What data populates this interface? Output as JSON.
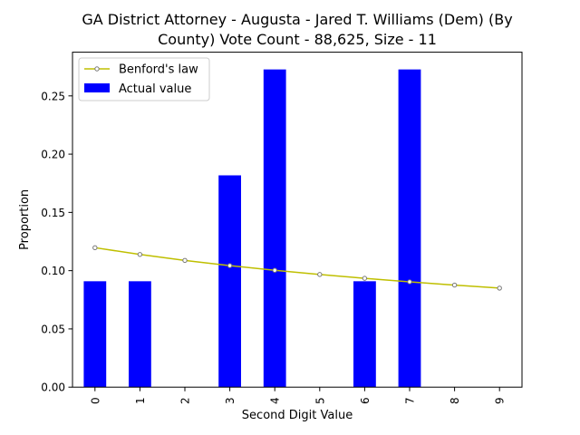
{
  "chart_data": {
    "type": "bar",
    "title_line1": "GA District Attorney - Augusta - Jared T. Williams (Dem) (By",
    "title_line2": "County) Vote Count - 88,625, Size - 11",
    "xlabel": "Second Digit Value",
    "ylabel": "Proportion",
    "categories": [
      "0",
      "1",
      "2",
      "3",
      "4",
      "5",
      "6",
      "7",
      "8",
      "9"
    ],
    "ylim": [
      0,
      0.2875
    ],
    "yticks": [
      "0.00",
      "0.05",
      "0.10",
      "0.15",
      "0.20",
      "0.25"
    ],
    "grid": false,
    "legend_position": "top-left",
    "series": [
      {
        "name": "Actual value",
        "kind": "bar",
        "color": "#0000ff",
        "values": [
          0.0909,
          0.0909,
          0,
          0.1818,
          0.2727,
          0,
          0.0909,
          0.2727,
          0,
          0
        ]
      },
      {
        "name": "Benford's law",
        "kind": "line",
        "color": "#bfbf00",
        "values": [
          0.1197,
          0.1139,
          0.1088,
          0.1043,
          0.1003,
          0.0967,
          0.0934,
          0.0904,
          0.0876,
          0.085
        ]
      }
    ]
  }
}
